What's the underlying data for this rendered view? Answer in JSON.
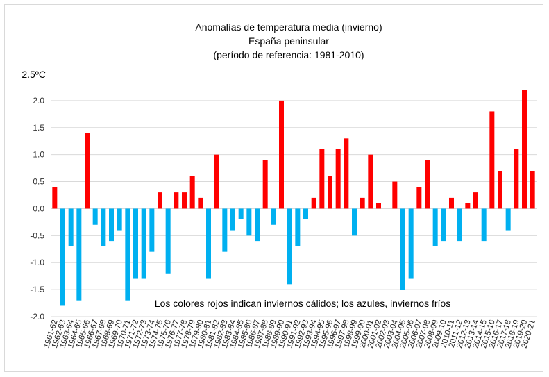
{
  "chart_data": {
    "type": "bar",
    "title_lines": [
      "Anomalías de temperatura media (invierno)",
      "España peninsular",
      "(período de referencia: 1981-2010)"
    ],
    "ylim": [
      -2.0,
      2.5
    ],
    "yticks": [
      2.0,
      1.5,
      1.0,
      0.5,
      0.0,
      -0.5,
      -1.0,
      -1.5,
      -2.0
    ],
    "ytick_labels": [
      "2.0",
      "1.5",
      "1.0",
      "0.5",
      "0.0",
      "-0.5",
      "-1.0",
      "-1.5",
      "-2.0"
    ],
    "ytop_label": "2.5ºC",
    "grid": true,
    "positive_color": "#ff0000",
    "negative_color": "#00b0f0",
    "annotation": "Los colores rojos indican inviernos cálidos; los azules, inviernos fríos",
    "categories": [
      "1961-62",
      "1962-63",
      "1963-64",
      "1964-65",
      "1965-66",
      "1966-67",
      "1967-68",
      "1968-69",
      "1969-70",
      "1970-71",
      "1971-72",
      "1972-73",
      "1973-74",
      "1974-75",
      "1975-76",
      "1976-77",
      "1977-78",
      "1978-79",
      "1979-80",
      "1980-81",
      "1981-82",
      "1982-83",
      "1983-84",
      "1984-85",
      "1985-86",
      "1986-87",
      "1987-88",
      "1988-89",
      "1989-90",
      "1990-91",
      "1991-92",
      "1992-93",
      "1993-94",
      "1994-95",
      "1995-96",
      "1996-97",
      "1997-98",
      "1998-99",
      "1999-00",
      "2000-01",
      "2001-02",
      "2002-03",
      "2003-04",
      "2004-05",
      "2005-06",
      "2006-07",
      "2007-08",
      "2008-09",
      "2009-10",
      "2010-11",
      "2011-12",
      "2012-13",
      "2013-14",
      "2014-15",
      "2015-16",
      "2016-17",
      "2017-18",
      "2018-19",
      "2019-20",
      "2020-21"
    ],
    "values": [
      0.4,
      -1.8,
      -0.7,
      -1.7,
      1.4,
      -0.3,
      -0.7,
      -0.6,
      -0.4,
      -1.7,
      -1.3,
      -1.3,
      -0.8,
      0.3,
      -1.2,
      0.3,
      0.3,
      0.6,
      0.2,
      -1.3,
      1.0,
      -0.8,
      -0.4,
      -0.2,
      -0.5,
      -0.6,
      0.9,
      -0.3,
      2.0,
      -1.4,
      -0.7,
      -0.2,
      0.2,
      1.1,
      0.6,
      1.1,
      1.3,
      -0.5,
      0.2,
      1.0,
      0.1,
      0.0,
      0.5,
      -1.5,
      -1.3,
      0.4,
      0.9,
      -0.7,
      -0.6,
      0.2,
      -0.6,
      0.1,
      0.3,
      -0.6,
      1.8,
      0.7,
      -0.4,
      1.1,
      2.2,
      0.7
    ]
  }
}
